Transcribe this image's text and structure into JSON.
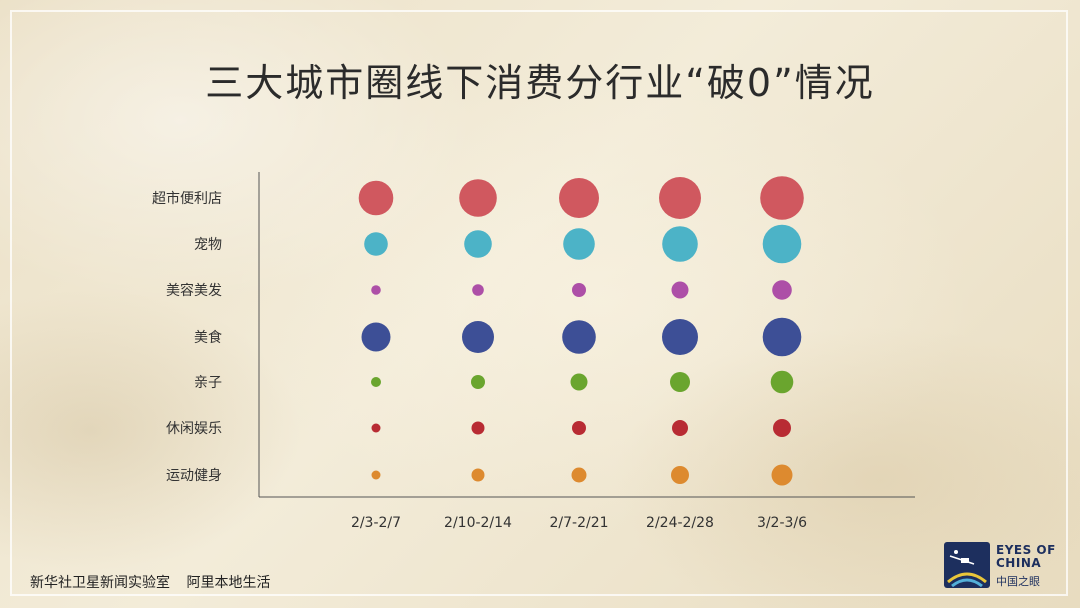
{
  "title": "三大城市圈线下消费分行业“破0”情况",
  "chart_data": {
    "type": "scatter",
    "categories": [
      "超市便利店",
      "宠物",
      "美容美发",
      "美食",
      "亲子",
      "休闲娱乐",
      "运动健身"
    ],
    "x": [
      "2/3-2/7",
      "2/10-2/14",
      "2/7-2/21",
      "2/24-2/28",
      "3/2-3/6"
    ],
    "series": [
      {
        "category": "超市便利店",
        "color": "#d0585f",
        "values": [
          0.69,
          0.75,
          0.8,
          0.84,
          0.87
        ]
      },
      {
        "category": "宠物",
        "color": "#4cb3c7",
        "values": [
          0.47,
          0.55,
          0.63,
          0.71,
          0.77
        ]
      },
      {
        "category": "美容美发",
        "color": "#ad4fa7",
        "values": [
          0.19,
          0.23,
          0.28,
          0.34,
          0.39
        ]
      },
      {
        "category": "美食",
        "color": "#3d4f96",
        "values": [
          0.58,
          0.64,
          0.67,
          0.72,
          0.77
        ]
      },
      {
        "category": "亲子",
        "color": "#6aa52e",
        "values": [
          0.2,
          0.28,
          0.34,
          0.4,
          0.45
        ]
      },
      {
        "category": "休闲娱乐",
        "color": "#b82b33",
        "values": [
          0.18,
          0.26,
          0.28,
          0.32,
          0.36
        ]
      },
      {
        "category": "运动健身",
        "color": "#dd8a2f",
        "values": [
          0.18,
          0.26,
          0.3,
          0.36,
          0.42
        ]
      }
    ],
    "size_encoding": "bubble area",
    "xlabel": "",
    "ylabel": "",
    "grid": false,
    "legend": "none"
  },
  "source": {
    "items": [
      "新华社卫星新闻实验室",
      "阿里本地生活"
    ]
  },
  "logo": {
    "text_line1": "EYES OF",
    "text_line2": "CHINA",
    "text_cn": "中国之眼",
    "icon": "eyes-of-china-logo-icon",
    "color": "#1d2f5e"
  }
}
